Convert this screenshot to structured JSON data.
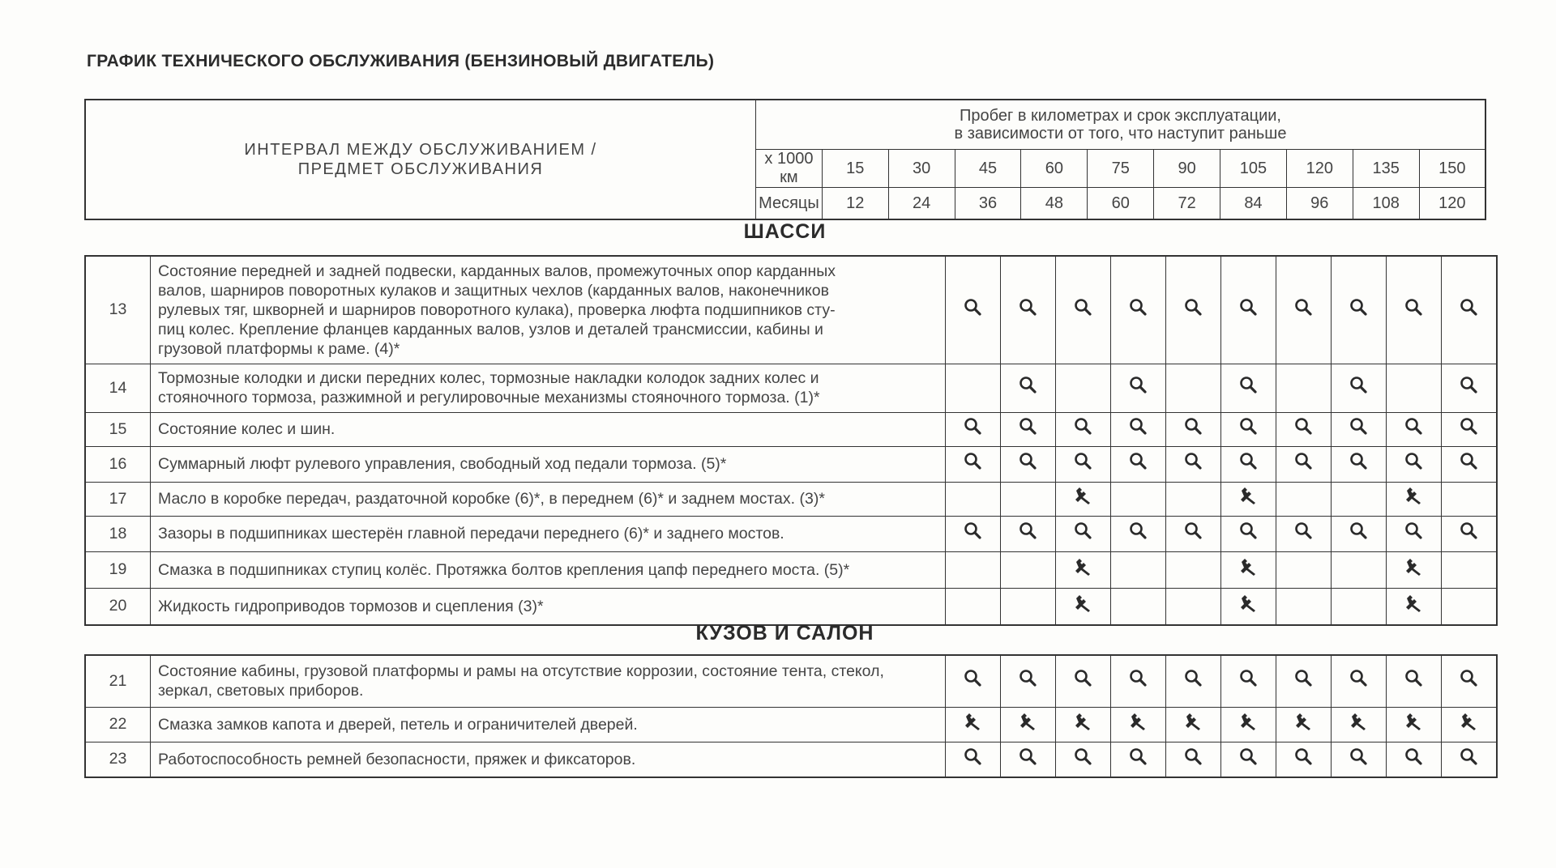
{
  "title": "ГРАФИК ТЕХНИЧЕСКОГО ОБСЛУЖИВАНИЯ (БЕНЗИНОВЫЙ ДВИГАТЕЛЬ)",
  "header": {
    "interval_label_line1": "ИНТЕРВАЛ МЕЖДУ ОБСЛУЖИВАНИЕМ /",
    "interval_label_line2": "ПРЕДМЕТ ОБСЛУЖИВАНИЯ",
    "mileage_label_line1": "Пробег в километрах и срок эксплуатации,",
    "mileage_label_line2": "в зависимости от того, что наступит раньше",
    "km_label": "х 1000 км",
    "months_label": "Месяцы",
    "km": [
      "15",
      "30",
      "45",
      "60",
      "75",
      "90",
      "105",
      "120",
      "135",
      "150"
    ],
    "months": [
      "12",
      "24",
      "36",
      "48",
      "60",
      "72",
      "84",
      "96",
      "108",
      "120"
    ]
  },
  "legend_icons": {
    "I": "magnifier-icon (inspect)",
    "S": "wrench-icon (service)"
  },
  "sections": [
    {
      "title": "ШАССИ",
      "rows": [
        {
          "num": "13",
          "lines": [
            "Состояние передней и задней подвески, карданных валов, промежуточных опор карданных",
            "валов, шарниров поворотных кулаков и защитных чехлов (карданных валов, наконечников",
            "рулевых тяг, шкворней и шарниров поворотного кулака), проверка люфта подшипников сту-",
            "пиц колес. Крепление фланцев карданных валов, узлов и деталей трансмиссии, кабины и",
            "грузовой платформы к раме. (4)*"
          ],
          "marks": "IIIIIIIIII",
          "h": 133
        },
        {
          "num": "14",
          "lines": [
            "Тормозные колодки и диски передних колес, тормозные накладки колодок задних колес и",
            "стояночного тормоза, разжимной и регулировочные механизмы стояночного тормоза. (1)*"
          ],
          "marks": "-I-I-I-I-I",
          "h": 60
        },
        {
          "num": "15",
          "lines": [
            "Состояние колес и шин."
          ],
          "marks": "IIIIIIIIII",
          "h": 42
        },
        {
          "num": "16",
          "lines": [
            "Суммарный люфт рулевого управления, свободный ход педали тормоза. (5)*"
          ],
          "marks": "IIIIIIIIII",
          "h": 44
        },
        {
          "num": "17",
          "lines": [
            "Масло в коробке передач, раздаточной коробке (6)*, в переднем (6)* и заднем мостах. (3)*"
          ],
          "marks": "--S--S--S-",
          "h": 42
        },
        {
          "num": "18",
          "lines": [
            "Зазоры в подшипниках шестерён главной передачи переднего (6)* и заднего мостов."
          ],
          "marks": "IIIIIIIIII",
          "h": 44
        },
        {
          "num": "19",
          "lines": [
            "Смазка в подшипниках ступиц колёс. Протяжка болтов крепления цапф переднего моста. (5)*"
          ],
          "marks": "--S--S--S-",
          "h": 45
        },
        {
          "num": "20",
          "lines": [
            "Жидкость гидроприводов тормозов и сцепления (3)*"
          ],
          "marks": "--S--S--S-",
          "h": 46
        }
      ]
    },
    {
      "title": "КУЗОВ И САЛОН",
      "rows": [
        {
          "num": "21",
          "lines": [
            "Состояние кабины, грузовой платформы и рамы на отсутствие коррозии, состояние тента, стекол,",
            "зеркал, световых приборов."
          ],
          "marks": "IIIIIIIIII",
          "h": 64
        },
        {
          "num": "22",
          "lines": [
            "Смазка замков капота и дверей, петель и ограничителей дверей."
          ],
          "marks": "SSSSSSSSSS",
          "h": 43
        },
        {
          "num": "23",
          "lines": [
            "Работоспособность ремней безопасности, пряжек и фиксаторов."
          ],
          "marks": "IIIIIIIIII",
          "h": 44
        }
      ]
    }
  ]
}
